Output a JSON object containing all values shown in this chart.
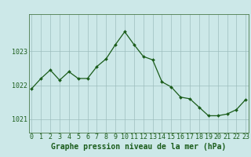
{
  "x": [
    0,
    1,
    2,
    3,
    4,
    5,
    6,
    7,
    8,
    9,
    10,
    11,
    12,
    13,
    14,
    15,
    16,
    17,
    18,
    19,
    20,
    21,
    22,
    23
  ],
  "y": [
    1021.9,
    1022.2,
    1022.45,
    1022.15,
    1022.4,
    1022.2,
    1022.2,
    1022.55,
    1022.78,
    1023.2,
    1023.58,
    1023.2,
    1022.85,
    1022.75,
    1022.1,
    1021.95,
    1021.65,
    1021.6,
    1021.35,
    1021.1,
    1021.1,
    1021.15,
    1021.28,
    1021.58
  ],
  "line_color": "#1a5c1a",
  "marker_color": "#1a5c1a",
  "bg_color": "#cce8e8",
  "grid_color_major": "#9dbdbd",
  "grid_color_minor": "#b8d4d4",
  "border_color": "#4a7a4a",
  "xlabel": "Graphe pression niveau de la mer (hPa)",
  "xlabel_fontsize": 7,
  "tick_fontsize": 6,
  "yticks": [
    1021,
    1022,
    1023
  ],
  "ylim": [
    1020.6,
    1024.1
  ],
  "xlim": [
    -0.3,
    23.3
  ]
}
